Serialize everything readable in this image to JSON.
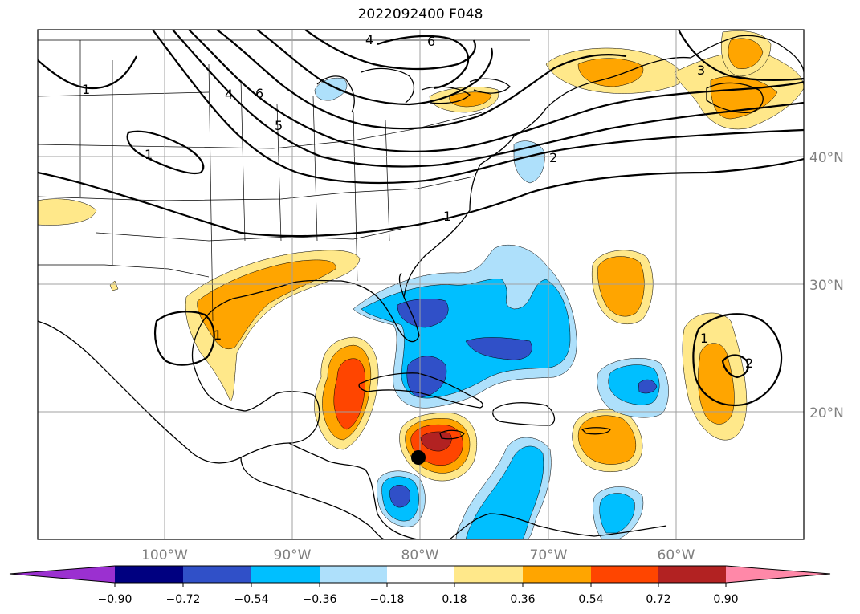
{
  "title": "2022092400 F048",
  "colors": {
    "neg_090": "#9b30d0",
    "neg_072": "#000080",
    "neg_054": "#3050c8",
    "neg_036": "#00bfff",
    "neg_018": "#aee0fb",
    "zero": "#ffffff",
    "pos_018": "#ffe88a",
    "pos_036": "#ffa500",
    "pos_054": "#ff4500",
    "pos_072": "#b22222",
    "pos_090": "#ff88a8"
  },
  "lat_labels": [
    "40°N",
    "30°N",
    "20°N"
  ],
  "lon_labels": [
    "100°W",
    "90°W",
    "80°W",
    "70°W",
    "60°W"
  ],
  "colorbar_labels": [
    "−0.90",
    "−0.72",
    "−0.54",
    "−0.36",
    "−0.18",
    "0.18",
    "0.36",
    "0.54",
    "0.72",
    "0.90"
  ],
  "contour_labels": [
    "1",
    "1",
    "1",
    "4",
    "6",
    "4",
    "6",
    "5",
    "2",
    "1",
    "3",
    "1",
    "2"
  ]
}
